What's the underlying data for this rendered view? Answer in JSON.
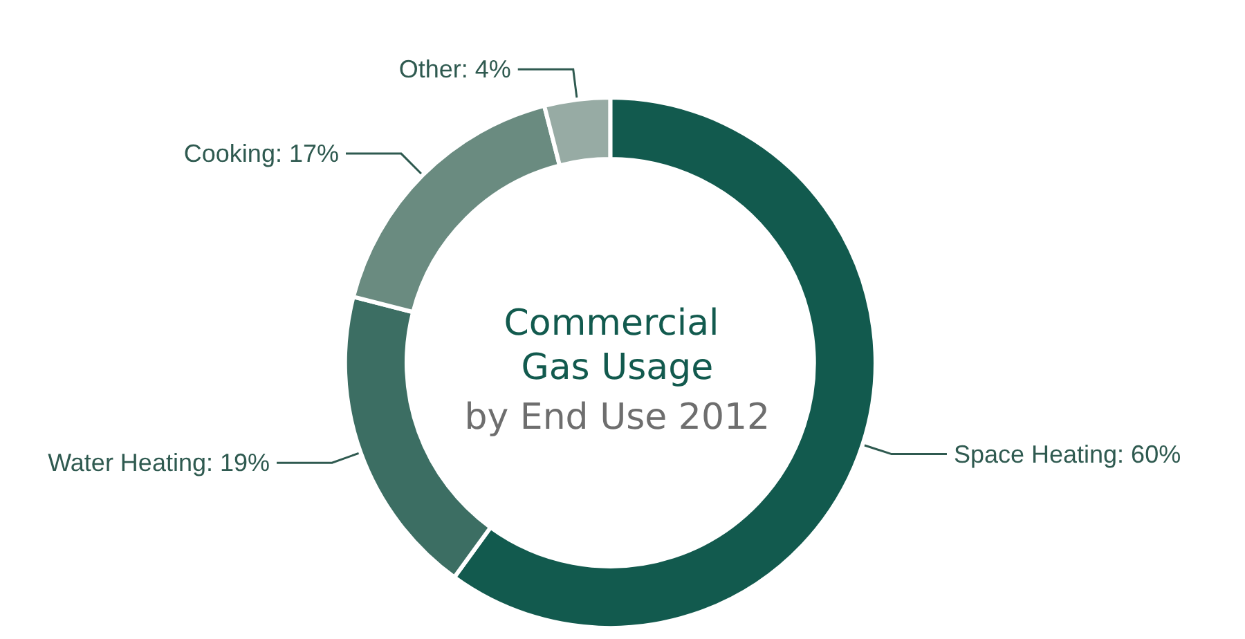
{
  "chart_data": {
    "type": "donut",
    "title": "Commercial Gas Usage",
    "subtitle": "by End Use 2012",
    "categories": [
      "Space Heating",
      "Water Heating",
      "Cooking",
      "Other"
    ],
    "values": [
      60,
      19,
      17,
      4
    ],
    "value_labels": [
      "60%",
      "19%",
      "17%",
      "4%"
    ],
    "colors": [
      "#125a4e",
      "#3c6e63",
      "#6a8b80",
      "#97aba4"
    ],
    "legend": false
  }
}
